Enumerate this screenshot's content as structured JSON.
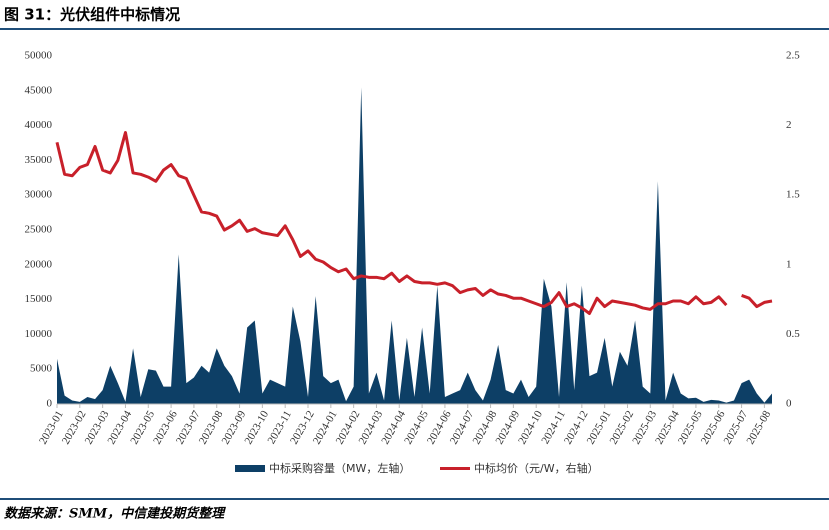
{
  "header": {
    "title": "图 31：光伏组件中标情况"
  },
  "chart_data": {
    "type": "area-line",
    "categories": [
      "2023-01",
      null,
      null,
      "2023-02",
      null,
      null,
      "2023-03",
      null,
      null,
      "2023-04",
      null,
      null,
      "2023-05",
      null,
      null,
      "2023-06",
      null,
      null,
      "2023-07",
      null,
      null,
      "2023-08",
      null,
      null,
      "2023-09",
      null,
      null,
      "2023-10",
      null,
      null,
      "2023-11",
      null,
      null,
      "2023-12",
      null,
      null,
      "2024-01",
      null,
      null,
      "2024-02",
      null,
      null,
      "2024-03",
      null,
      null,
      "2024-04",
      null,
      null,
      "2024-05",
      null,
      null,
      "2024-06",
      null,
      null,
      "2024-07",
      null,
      null,
      "2024-08",
      null,
      null,
      "2024-09",
      null,
      null,
      "2024-10",
      null,
      null,
      "2024-11",
      null,
      null,
      "2024-12",
      null,
      null,
      "2025-01",
      null,
      null,
      "2025-02",
      null,
      null,
      "2025-03",
      null,
      null,
      "2025-04",
      null,
      null,
      "2025-05",
      null,
      null,
      "2025-06",
      null,
      null,
      "2025-07",
      null,
      null,
      "2025-08",
      null
    ],
    "series": [
      {
        "name": "中标采购容量（MW，左轴）",
        "color": "#0d3f66",
        "kind": "area",
        "values": [
          6500,
          1200,
          500,
          300,
          1000,
          700,
          2000,
          5500,
          3000,
          300,
          8000,
          1000,
          5000,
          4800,
          2500,
          2500,
          21500,
          3000,
          3800,
          5500,
          4500,
          8000,
          5500,
          4000,
          1500,
          11000,
          12000,
          1500,
          3500,
          3000,
          2500,
          14000,
          9000,
          1000,
          15500,
          4000,
          3000,
          3500,
          400,
          2500,
          45500,
          1500,
          4500,
          500,
          12000,
          500,
          9500,
          1000,
          11000,
          1500,
          17000,
          1000,
          1500,
          2000,
          4500,
          2000,
          500,
          3500,
          8500,
          2000,
          1500,
          3500,
          1000,
          2500,
          18000,
          14000,
          1000,
          17500,
          2000,
          17000,
          4000,
          4500,
          9500,
          2500,
          7500,
          5500,
          12000,
          2500,
          1500,
          32000,
          500,
          4500,
          1500,
          800,
          900,
          300,
          600,
          500,
          200,
          500,
          3000,
          3500,
          1500,
          200,
          1500
        ]
      },
      {
        "name": "中标均价（元/W，右轴）",
        "color": "#c8202a",
        "kind": "line",
        "axis": "y2",
        "values": [
          1.88,
          1.65,
          1.64,
          1.7,
          1.72,
          1.85,
          1.68,
          1.66,
          1.75,
          1.95,
          1.66,
          1.65,
          1.63,
          1.6,
          1.68,
          1.72,
          1.64,
          1.62,
          1.5,
          1.38,
          1.37,
          1.35,
          1.25,
          1.28,
          1.32,
          1.24,
          1.26,
          1.23,
          1.22,
          1.21,
          1.28,
          1.18,
          1.06,
          1.1,
          1.04,
          1.02,
          0.98,
          0.95,
          0.97,
          0.9,
          0.92,
          0.91,
          0.91,
          0.9,
          0.94,
          0.88,
          0.92,
          0.88,
          0.87,
          0.87,
          0.86,
          0.87,
          0.85,
          0.8,
          0.82,
          0.83,
          0.78,
          0.82,
          0.79,
          0.78,
          0.76,
          0.76,
          0.74,
          0.72,
          0.7,
          0.73,
          0.8,
          0.7,
          0.72,
          0.69,
          0.65,
          0.76,
          0.7,
          0.74,
          0.73,
          0.72,
          0.71,
          0.69,
          0.68,
          0.72,
          0.72,
          0.74,
          0.74,
          0.72,
          0.77,
          0.72,
          0.73,
          0.77,
          0.71,
          null,
          0.78,
          0.76,
          0.7,
          0.73,
          0.74
        ]
      }
    ],
    "ylim": [
      0,
      50000
    ],
    "yticks": [
      0,
      5000,
      10000,
      15000,
      20000,
      25000,
      30000,
      35000,
      40000,
      45000,
      50000
    ],
    "y2lim": [
      0,
      2.5
    ],
    "y2ticks": [
      0,
      0.5,
      1,
      1.5,
      2,
      2.5
    ]
  },
  "footer": {
    "source": "数据来源：SMM，中信建投期货整理"
  }
}
